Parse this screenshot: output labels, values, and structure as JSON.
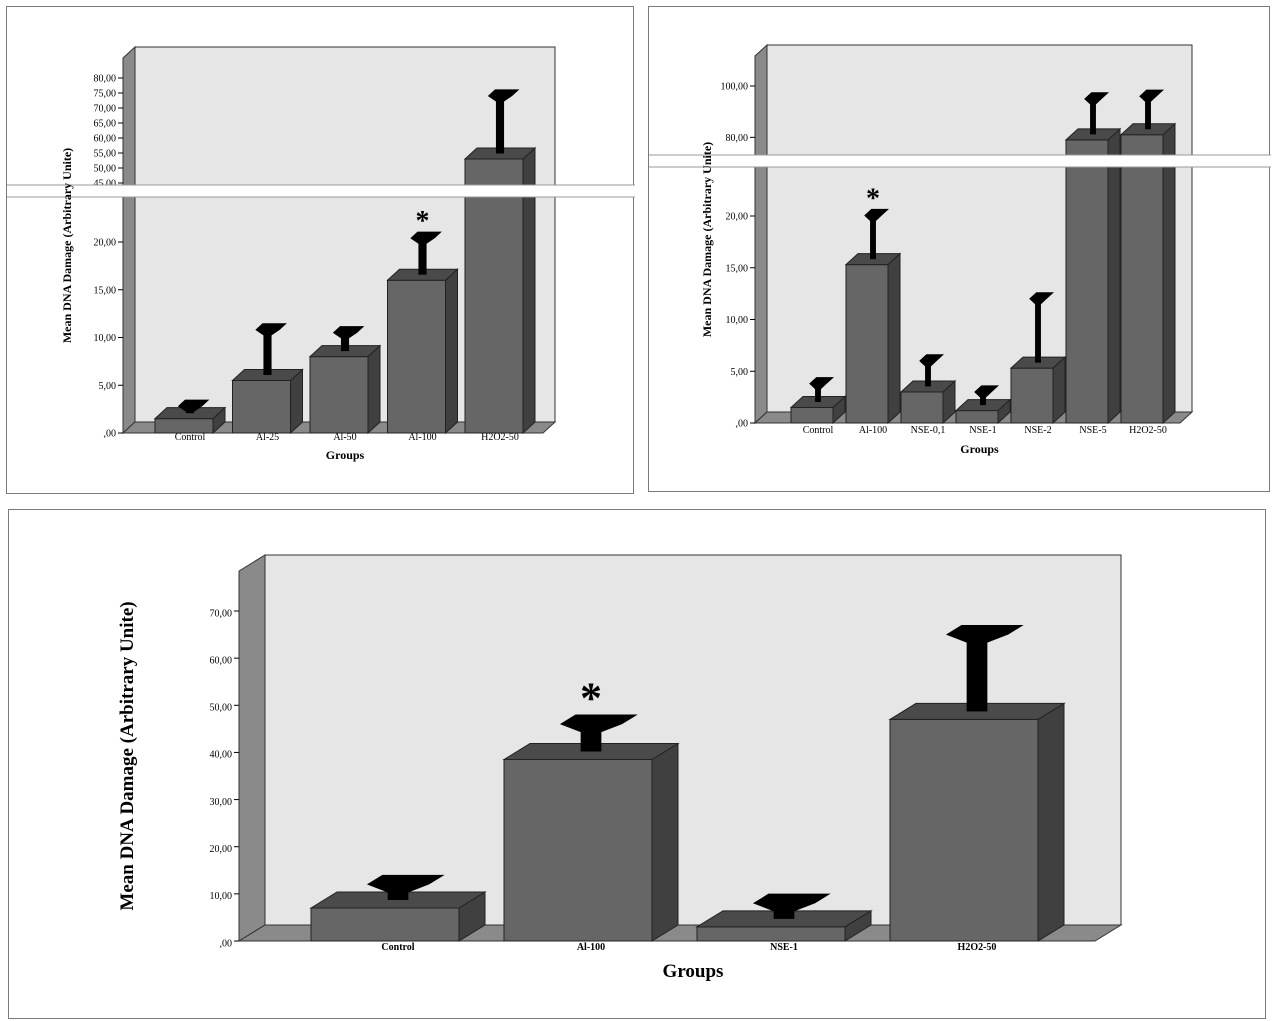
{
  "chart_data": [
    {
      "type": "bar",
      "xlabel": "Groups",
      "ylabel": "Mean DNA Damage (Arbitrary Unite)",
      "categories": [
        "Control",
        "Al-25",
        "Al-50",
        "Al-100",
        "H2O2-50"
      ],
      "values": [
        1.5,
        5.5,
        8.0,
        16.0,
        53.0
      ],
      "error_upper": [
        2.8,
        10.8,
        10.5,
        21.6,
        74.0
      ],
      "significance": [
        "",
        "",
        "",
        "*",
        ""
      ],
      "y_axis_break": true,
      "yticks_lower": [
        ",00",
        "5,00",
        "10,00",
        "15,00",
        "20,00"
      ],
      "yticks_upper": [
        "45,00",
        "50,00",
        "55,00",
        "60,00",
        "65,00",
        "70,00",
        "75,00",
        "80,00"
      ]
    },
    {
      "type": "bar",
      "xlabel": "Groups",
      "ylabel": "Mean DNA Damage (Arbitrary Unite)",
      "categories": [
        "Control",
        "Al-100",
        "NSE-0,1",
        "NSE-1",
        "NSE-2",
        "NSE-5",
        "H2O2-50"
      ],
      "values": [
        1.5,
        15.3,
        3.0,
        1.2,
        5.3,
        79.0,
        81.0
      ],
      "error_upper": [
        3.8,
        20.5,
        6.0,
        3.0,
        12.0,
        95.0,
        96.0
      ],
      "significance": [
        "",
        "*",
        "",
        "",
        "",
        "",
        ""
      ],
      "y_axis_break": true,
      "yticks_lower": [
        ",00",
        "5,00",
        "10,00",
        "15,00",
        "20,00"
      ],
      "yticks_upper": [
        "80,00",
        "100,00"
      ]
    },
    {
      "type": "bar",
      "xlabel": "Groups",
      "ylabel": "Mean DNA Damage (Arbitrary Unite)",
      "categories": [
        "Control",
        "Al-100",
        "NSE-1",
        "H2O2-50"
      ],
      "values": [
        7.0,
        38.5,
        3.0,
        47.0
      ],
      "error_upper": [
        12.0,
        46.0,
        8.0,
        65.0
      ],
      "significance": [
        "",
        "*",
        "",
        ""
      ],
      "y_axis_break": false,
      "yticks": [
        ",00",
        "10,00",
        "20,00",
        "30,00",
        "40,00",
        "50,00",
        "60,00",
        "70,00"
      ]
    }
  ]
}
